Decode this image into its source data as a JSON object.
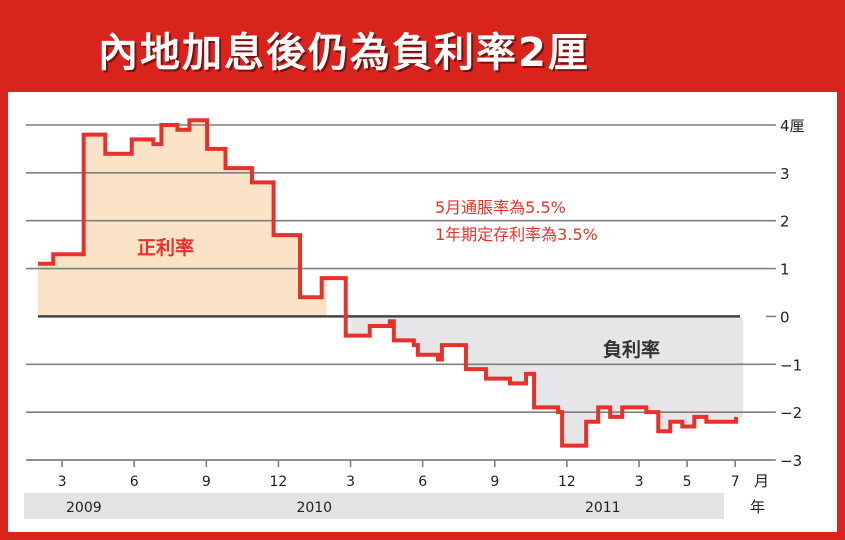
{
  "title": "內地加息後仍為負利率2厘",
  "chart_data": {
    "type": "line",
    "ylim": [
      -3,
      4
    ],
    "y_ticks": [
      "4厘",
      "3",
      "2",
      "1",
      "0",
      "−1",
      "−2",
      "−3"
    ],
    "y_tick_values": [
      4,
      3,
      2,
      1,
      0,
      -1,
      -2,
      -3
    ],
    "x_start_month": "2009-02",
    "x_ticks": [
      {
        "label": "3",
        "month": "2009-03"
      },
      {
        "label": "6",
        "month": "2009-06"
      },
      {
        "label": "9",
        "month": "2009-09"
      },
      {
        "label": "12",
        "month": "2009-12"
      },
      {
        "label": "3",
        "month": "2010-03"
      },
      {
        "label": "6",
        "month": "2010-06"
      },
      {
        "label": "9",
        "month": "2010-09"
      },
      {
        "label": "12",
        "month": "2010-12"
      },
      {
        "label": "3",
        "month": "2011-03"
      },
      {
        "label": "5",
        "month": "2011-05"
      },
      {
        "label": "7",
        "month": "2011-07"
      }
    ],
    "x_unit_label": "月",
    "year_unit_label": "年",
    "years": [
      {
        "label": "2009",
        "from": "2009-02",
        "to": "2010-01"
      },
      {
        "label": "2010",
        "from": "2010-01",
        "to": "2011-01"
      },
      {
        "label": "2011",
        "from": "2011-01",
        "to": "2011-08"
      }
    ],
    "series": [
      {
        "color": "#e8312a",
        "points": [
          [
            "2009-02",
            1.1
          ],
          [
            "2009-02-20",
            1.3
          ],
          [
            "2009-03-25",
            1.3
          ],
          [
            "2009-03-28",
            3.8
          ],
          [
            "2009-04-20",
            3.8
          ],
          [
            "2009-04-25",
            3.4
          ],
          [
            "2009-05-25",
            3.4
          ],
          [
            "2009-05-28",
            3.7
          ],
          [
            "2009-06-25",
            3.6
          ],
          [
            "2009-07-05",
            4.0
          ],
          [
            "2009-07-25",
            3.9
          ],
          [
            "2009-08-10",
            4.1
          ],
          [
            "2009-08-28",
            4.1
          ],
          [
            "2009-09-02",
            3.5
          ],
          [
            "2009-09-20",
            3.5
          ],
          [
            "2009-09-25",
            3.1
          ],
          [
            "2009-10-25",
            3.1
          ],
          [
            "2009-10-28",
            2.8
          ],
          [
            "2009-11-20",
            2.8
          ],
          [
            "2009-11-25",
            1.7
          ],
          [
            "2009-12-25",
            1.7
          ],
          [
            "2009-12-28",
            0.4
          ],
          [
            "2010-01-20",
            0.4
          ],
          [
            "2010-01-25",
            0.8
          ],
          [
            "2010-02-20",
            0.8
          ],
          [
            "2010-02-25",
            -0.4
          ],
          [
            "2010-03-20",
            -0.4
          ],
          [
            "2010-03-25",
            -0.2
          ],
          [
            "2010-04-20",
            -0.1
          ],
          [
            "2010-04-25",
            -0.5
          ],
          [
            "2010-05-20",
            -0.6
          ],
          [
            "2010-05-25",
            -0.8
          ],
          [
            "2010-06-20",
            -0.9
          ],
          [
            "2010-06-25",
            -0.6
          ],
          [
            "2010-07-20",
            -0.6
          ],
          [
            "2010-07-25",
            -1.1
          ],
          [
            "2010-08-20",
            -1.3
          ],
          [
            "2010-09-20",
            -1.4
          ],
          [
            "2010-10-10",
            -1.2
          ],
          [
            "2010-10-20",
            -1.9
          ],
          [
            "2010-11-20",
            -2.0
          ],
          [
            "2010-11-25",
            -2.7
          ],
          [
            "2010-12-20",
            -2.7
          ],
          [
            "2010-12-25",
            -2.2
          ],
          [
            "2011-01-10",
            -1.9
          ],
          [
            "2011-01-25",
            -2.1
          ],
          [
            "2011-02-10",
            -1.9
          ],
          [
            "2011-03-10",
            -2.0
          ],
          [
            "2011-03-20",
            -2.0
          ],
          [
            "2011-03-25",
            -2.4
          ],
          [
            "2011-04-10",
            -2.2
          ],
          [
            "2011-04-25",
            -2.3
          ],
          [
            "2011-05-10",
            -2.1
          ],
          [
            "2011-05-25",
            -2.2
          ],
          [
            "2011-06-10",
            -2.2
          ],
          [
            "2011-06-25",
            -2.2
          ],
          [
            "2011-07-02",
            -2.1
          ]
        ]
      }
    ],
    "regions": [
      {
        "label": "正利率",
        "from": "2009-02",
        "to": "2010-02",
        "sign": "positive",
        "color": "#fbe3c8"
      },
      {
        "label": "負利率",
        "from": "2010-03",
        "to": "2011-07",
        "sign": "negative",
        "color": "#e6e6e8"
      }
    ],
    "annotations": [
      "5月通脹率為5.5%",
      "1年期定存利率為3.5%"
    ],
    "grid": true
  },
  "colors": {
    "frame": "#d9241d",
    "line": "#e8312a",
    "grid": "#7f7f7f",
    "zero_line": "#444444",
    "text": "#222222",
    "year_band": "#e3e3e3"
  }
}
